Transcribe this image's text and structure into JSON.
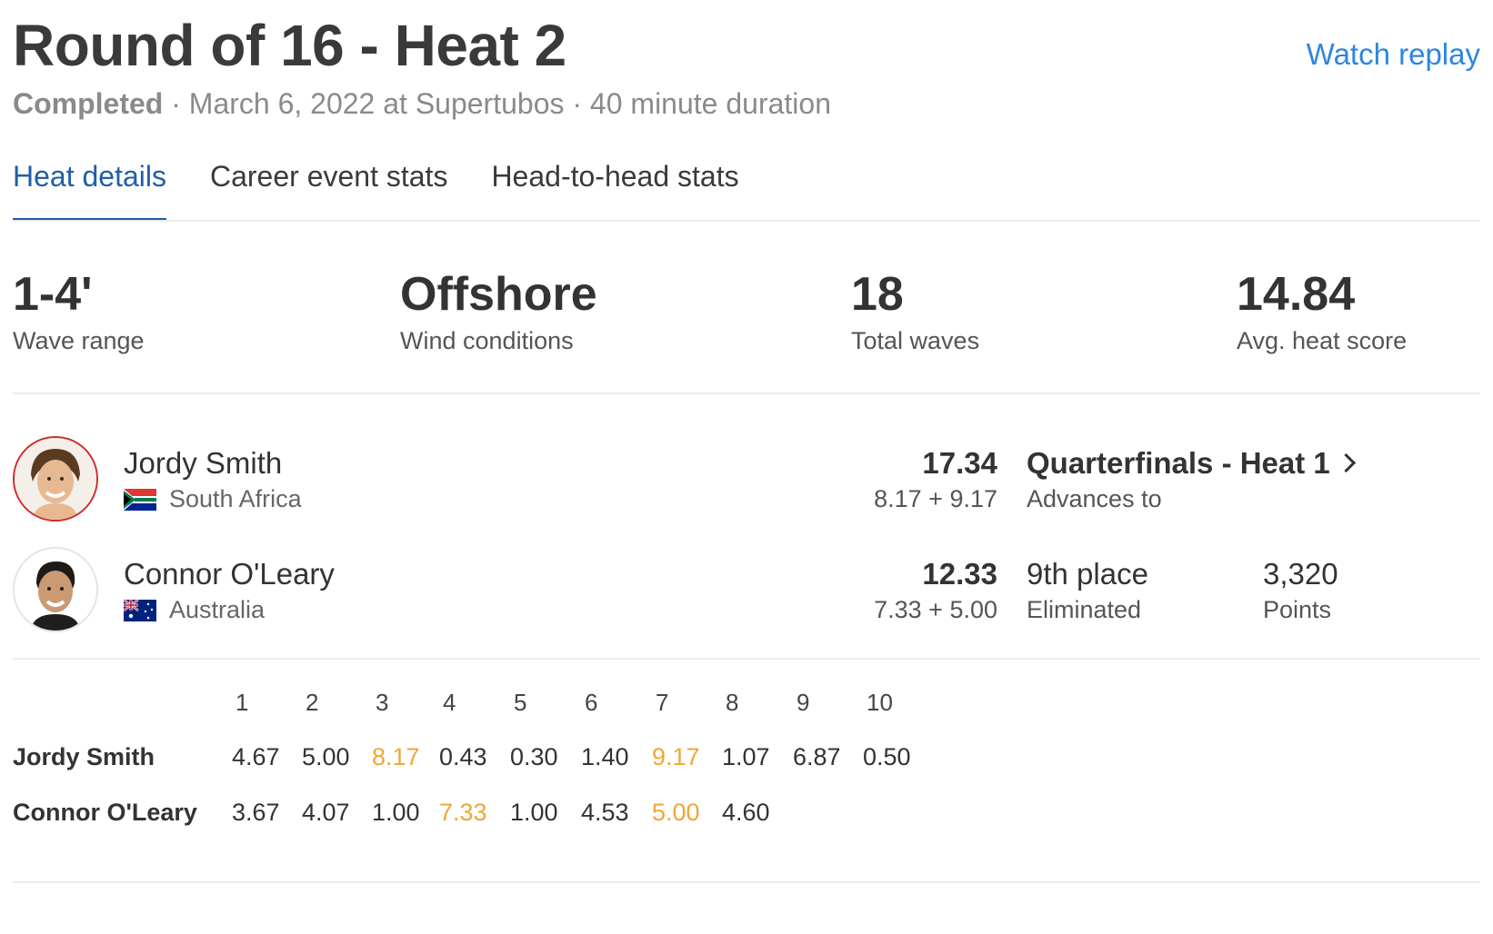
{
  "header": {
    "title": "Round of 16 - Heat 2",
    "watch_replay": "Watch replay",
    "status": "Completed",
    "subtitle_rest": "· March 6, 2022 at Supertubos · 40 minute duration"
  },
  "tabs": [
    {
      "label": "Heat details",
      "active": true
    },
    {
      "label": "Career event stats",
      "active": false
    },
    {
      "label": "Head-to-head stats",
      "active": false
    }
  ],
  "stats": [
    {
      "value": "1-4'",
      "label": "Wave range"
    },
    {
      "value": "Offshore",
      "label": "Wind conditions"
    },
    {
      "value": "18",
      "label": "Total waves"
    },
    {
      "value": "14.84",
      "label": "Avg. heat score"
    }
  ],
  "athletes": [
    {
      "name": "Jordy Smith",
      "country": "South Africa",
      "flag_icon": "south-africa-flag-icon",
      "total": "17.34",
      "breakdown": "8.17 + 9.17",
      "result": "Quarterfinals - Heat 1",
      "result_sub": "Advances to"
    },
    {
      "name": "Connor O'Leary",
      "country": "Australia",
      "flag_icon": "australia-flag-icon",
      "total": "12.33",
      "breakdown": "7.33 + 5.00",
      "result": "9th place",
      "result_sub": "Eliminated",
      "points": "3,320",
      "points_label": "Points"
    }
  ],
  "waves": {
    "headers": [
      "1",
      "2",
      "3",
      "4",
      "5",
      "6",
      "7",
      "8",
      "9",
      "10"
    ],
    "rows": [
      {
        "name": "Jordy Smith",
        "scores": [
          "4.67",
          "5.00",
          "8.17",
          "0.43",
          "0.30",
          "1.40",
          "9.17",
          "1.07",
          "6.87",
          "0.50"
        ],
        "counting": [
          2,
          6
        ]
      },
      {
        "name": "Connor O'Leary",
        "scores": [
          "3.67",
          "4.07",
          "1.00",
          "7.33",
          "1.00",
          "4.53",
          "5.00",
          "4.60"
        ],
        "counting": [
          3,
          6
        ]
      }
    ],
    "highlight_color": "#f0a637"
  },
  "colors": {
    "accent": "#1f5fa8",
    "link": "#2f86e0",
    "winner_ring": "#cf2a2a"
  }
}
